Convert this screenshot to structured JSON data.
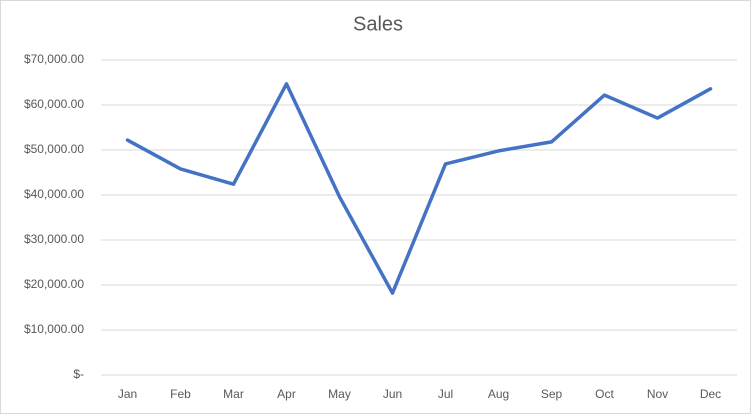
{
  "chart_data": {
    "type": "line",
    "title": "Sales",
    "categories": [
      "Jan",
      "Feb",
      "Mar",
      "Apr",
      "May",
      "Jun",
      "Jul",
      "Aug",
      "Sep",
      "Oct",
      "Nov",
      "Dec"
    ],
    "series": [
      {
        "name": "Sales",
        "color": "#4472c4",
        "values": [
          52200,
          45800,
          42400,
          64700,
          39600,
          18200,
          46900,
          49800,
          51800,
          62200,
          57100,
          63600
        ]
      }
    ],
    "ylim": [
      0,
      70000
    ],
    "yticks": [
      {
        "value": 0,
        "label": "$-"
      },
      {
        "value": 10000,
        "label": "$10,000.00"
      },
      {
        "value": 20000,
        "label": "$20,000.00"
      },
      {
        "value": 30000,
        "label": "$30,000.00"
      },
      {
        "value": 40000,
        "label": "$40,000.00"
      },
      {
        "value": 50000,
        "label": "$50,000.00"
      },
      {
        "value": 60000,
        "label": "$60,000.00"
      },
      {
        "value": 70000,
        "label": "$70,000.00"
      }
    ],
    "grid": true
  }
}
